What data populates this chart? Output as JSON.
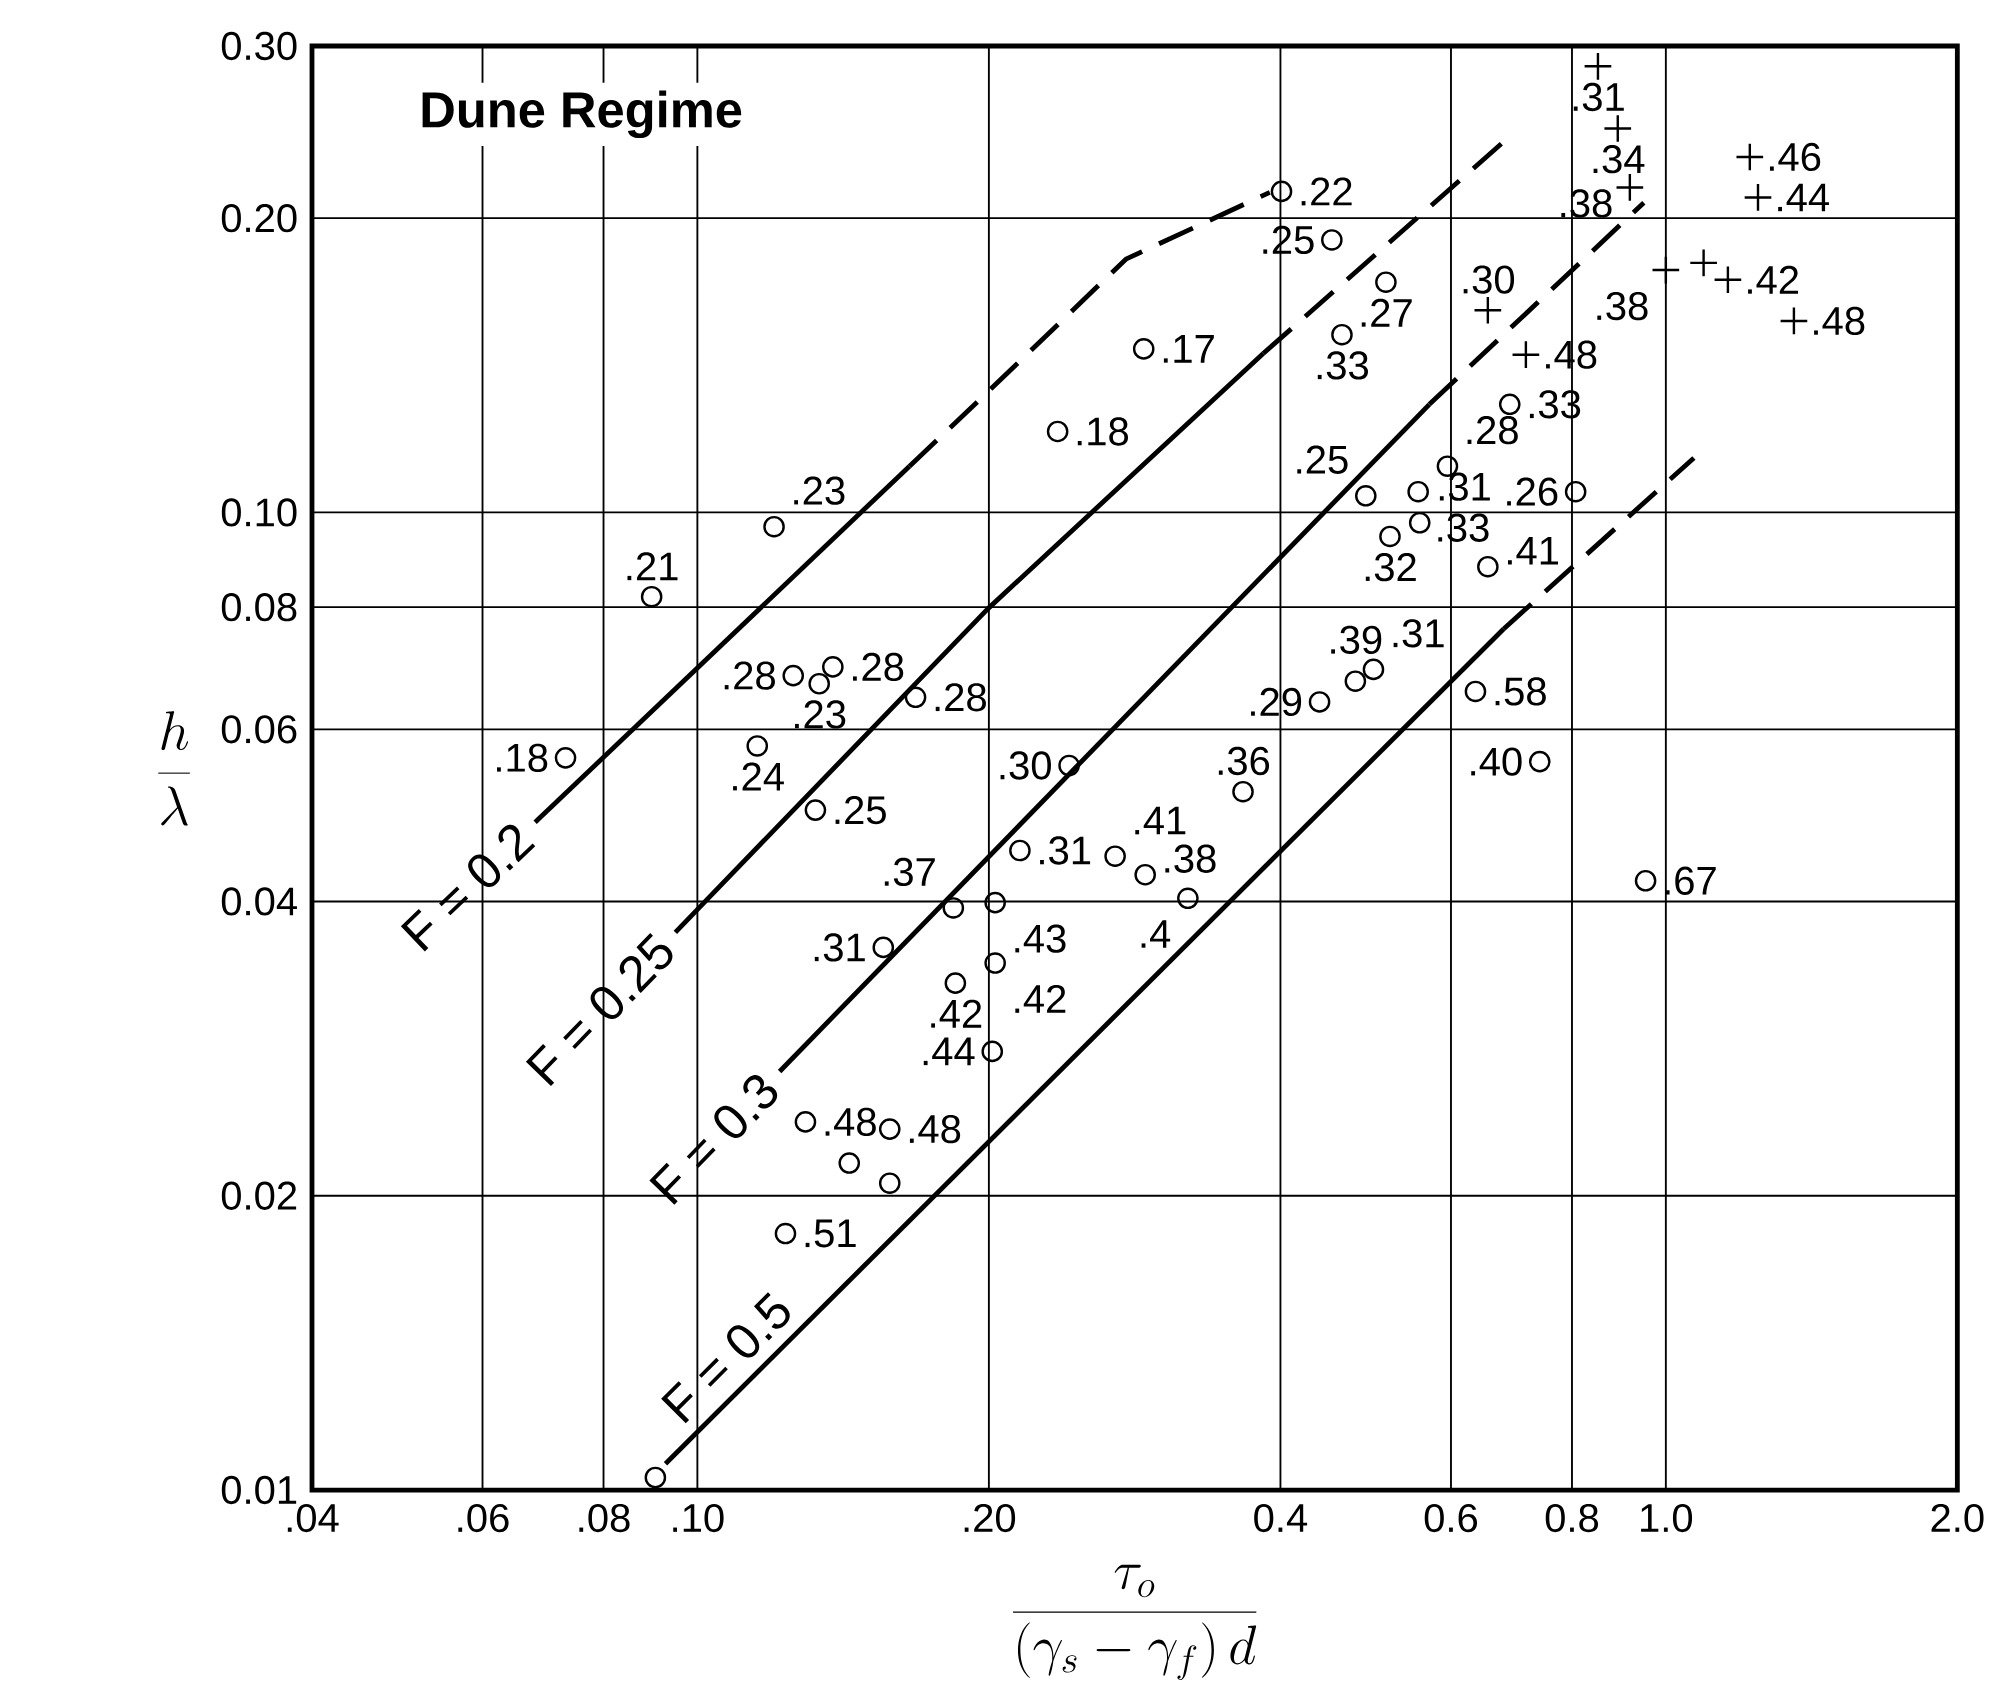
{
  "chart_data": {
    "type": "scatter",
    "title": "Dune Regime",
    "xlabel": "\\frac{\\tau_o}{(\\gamma_s-\\gamma_f)\\,d}",
    "ylabel": "\\frac{h}{\\lambda}",
    "log": "xy",
    "grid": true,
    "xlim": [
      0.04,
      2.0
    ],
    "ylim": [
      0.01,
      0.3
    ],
    "xticks": [
      {
        "value": 0.04,
        "label": ".04"
      },
      {
        "value": 0.06,
        "label": ".06"
      },
      {
        "value": 0.08,
        "label": ".08"
      },
      {
        "value": 0.1,
        "label": ".10"
      },
      {
        "value": 0.2,
        "label": ".20"
      },
      0.4,
      0.6,
      0.8,
      {
        "value": 1.0,
        "label": "1.0"
      },
      {
        "value": 2.0,
        "label": "2.0"
      }
    ],
    "yticks": [
      0.01,
      0.02,
      0.04,
      0.06,
      0.08,
      {
        "value": 0.1,
        "label": "0.10"
      },
      {
        "value": 0.2,
        "label": "0.20"
      },
      {
        "value": 0.3,
        "label": "0.30"
      }
    ],
    "series": [
      {
        "marker": "circle",
        "color": "#000000",
        "x": [
          0.12,
          0.0897,
          0.1256,
          0.1336,
          0.138,
          0.1153,
          0.0731,
          0.168,
          0.401,
          0.452,
          0.514,
          0.463,
          0.289,
          0.2355,
          0.49,
          0.555,
          0.519,
          0.557,
          0.595,
          0.439,
          0.478,
          0.499,
          0.242,
          0.655,
          0.69,
          0.807,
          0.636,
          0.741,
          0.953,
          0.1324,
          0.1556,
          0.0905,
          0.2153,
          0.1838
        ],
        "values": [
          0.0967,
          0.082,
          0.0681,
          0.0668,
          0.0695,
          0.0577,
          0.0561,
          0.0647,
          0.213,
          0.19,
          0.172,
          0.152,
          0.147,
          0.121,
          0.104,
          0.105,
          0.0945,
          0.0976,
          0.1115,
          0.064,
          0.0672,
          0.0691,
          0.0551,
          0.088,
          0.129,
          0.105,
          0.0656,
          0.0556,
          0.042,
          0.0496,
          0.0359,
          0.0103,
          0.0451,
          0.0394
        ]
      },
      {
        "marker": "circle",
        "color": "#000000",
        "x": [
          0.203,
          0.27,
          0.29,
          0.321,
          0.366,
          0.203,
          0.1847,
          0.2016,
          0.1293,
          0.158,
          0.1435,
          0.158,
          0.1233
        ],
        "values": [
          0.0399,
          0.0445,
          0.0426,
          0.0403,
          0.0518,
          0.0346,
          0.033,
          0.0281,
          0.0238,
          0.0234,
          0.0216,
          0.0206,
          0.0183
        ]
      },
      {
        "marker": "cross",
        "color": "#000000",
        "x": [
          0.851,
          0.892,
          0.918,
          1.221,
          1.245,
          1.0,
          1.094,
          1.159,
          1.356,
          0.655,
          0.717
        ],
        "values": [
          0.286,
          0.247,
          0.215,
          0.231,
          0.21,
          0.177,
          0.18,
          0.173,
          0.157,
          0.161,
          0.145
        ]
      },
      {
        "type": "line",
        "name": "F = 0.2",
        "line_style": "solid",
        "color": "#000000",
        "x": [
          0.068,
          0.1656
        ],
        "values": [
          0.0482,
          0.1115
        ]
      },
      {
        "type": "line",
        "line_style": "dashed",
        "color": "#000000",
        "x": [
          0.1656,
          0.1955,
          0.277,
          0.39
        ],
        "values": [
          0.1115,
          0.1303,
          0.1816,
          0.2125
        ]
      },
      {
        "type": "line",
        "name": "F = 0.25",
        "line_style": "solid",
        "color": "#000000",
        "x": [
          0.0949,
          0.1995,
          0.384
        ],
        "values": [
          0.0372,
          0.0797,
          0.1454
        ]
      },
      {
        "type": "line",
        "line_style": "dashed",
        "color": "#000000",
        "x": [
          0.384,
          0.69
        ],
        "values": [
          0.1454,
          0.2425
        ]
      },
      {
        "type": "line",
        "name": "F = 0.3",
        "line_style": "solid",
        "color": "#000000",
        "x": [
          0.1216,
          0.57
        ],
        "values": [
          0.0268,
          0.129
        ]
      },
      {
        "type": "line",
        "line_style": "dashed",
        "color": "#000000",
        "x": [
          0.57,
          0.949
        ],
        "values": [
          0.129,
          0.2074
        ]
      },
      {
        "type": "line",
        "name": "F = 0.5",
        "line_style": "solid",
        "color": "#000000",
        "x": [
          0.0927,
          0.68
        ],
        "values": [
          0.01064,
          0.076
        ]
      },
      {
        "type": "line",
        "line_style": "dashed",
        "color": "#000000",
        "x": [
          0.68,
          1.069
        ],
        "values": [
          0.076,
          0.1137
        ]
      }
    ],
    "annotations": [
      {
        "text": ".23",
        "x": 0.12,
        "y": 0.0967
      },
      {
        "text": ".21",
        "x": 0.0897,
        "y": 0.082
      },
      {
        "text": ".28",
        "x": 0.1256,
        "y": 0.0681
      },
      {
        "text": ".23",
        "x": 0.1336,
        "y": 0.0668
      },
      {
        "text": ".28",
        "x": 0.138,
        "y": 0.0695
      },
      {
        "text": ".24",
        "x": 0.1153,
        "y": 0.0577
      },
      {
        "text": ".18",
        "x": 0.0731,
        "y": 0.0561
      },
      {
        "text": ".28",
        "x": 0.168,
        "y": 0.0647
      },
      {
        "text": ".22",
        "x": 0.401,
        "y": 0.213
      },
      {
        "text": ".25",
        "x": 0.452,
        "y": 0.19
      },
      {
        "text": ".27",
        "x": 0.514,
        "y": 0.172
      },
      {
        "text": ".33",
        "x": 0.463,
        "y": 0.152
      },
      {
        "text": ".17",
        "x": 0.289,
        "y": 0.147
      },
      {
        "text": ".18",
        "x": 0.2355,
        "y": 0.121
      },
      {
        "text": ".25",
        "x": 0.49,
        "y": 0.104
      },
      {
        "text": ".33",
        "x": 0.555,
        "y": 0.105
      },
      {
        "text": ".32",
        "x": 0.519,
        "y": 0.0945
      },
      {
        "text": ".31",
        "x": 0.557,
        "y": 0.0976
      },
      {
        "text": ".28",
        "x": 0.595,
        "y": 0.1115
      },
      {
        "text": ".29",
        "x": 0.439,
        "y": 0.064
      },
      {
        "text": ".39",
        "x": 0.478,
        "y": 0.0672
      },
      {
        "text": ".31",
        "x": 0.499,
        "y": 0.0691
      },
      {
        "text": ".30",
        "x": 0.242,
        "y": 0.0551
      },
      {
        "text": ".41",
        "x": 0.655,
        "y": 0.088
      },
      {
        "text": ".33",
        "x": 0.69,
        "y": 0.129
      },
      {
        "text": ".26",
        "x": 0.807,
        "y": 0.105
      },
      {
        "text": ".58",
        "x": 0.636,
        "y": 0.0656
      },
      {
        "text": ".40",
        "x": 0.741,
        "y": 0.0556
      },
      {
        "text": ".67",
        "x": 0.953,
        "y": 0.042
      },
      {
        "text": ".25",
        "x": 0.1324,
        "y": 0.0496
      },
      {
        "text": ".31",
        "x": 0.1556,
        "y": 0.0359
      },
      {
        "text": ".31",
        "x": 0.2153,
        "y": 0.0451
      },
      {
        "text": ".37",
        "x": 0.1838,
        "y": 0.0394
      },
      {
        "text": ".43",
        "x": 0.203,
        "y": 0.0399
      },
      {
        "text": ".41",
        "x": 0.27,
        "y": 0.0445
      },
      {
        "text": ".38",
        "x": 0.29,
        "y": 0.0426
      },
      {
        "text": ".4",
        "x": 0.321,
        "y": 0.0403
      },
      {
        "text": ".36",
        "x": 0.366,
        "y": 0.0518
      },
      {
        "text": ".42",
        "x": 0.203,
        "y": 0.0346
      },
      {
        "text": ".42",
        "x": 0.1847,
        "y": 0.033
      },
      {
        "text": ".44",
        "x": 0.2016,
        "y": 0.0281
      },
      {
        "text": ".48",
        "x": 0.1293,
        "y": 0.0238
      },
      {
        "text": ".48",
        "x": 0.158,
        "y": 0.0234
      },
      {
        "text": ".51",
        "x": 0.1233,
        "y": 0.0183
      },
      {
        "text": ".31",
        "x": 0.851,
        "y": 0.286
      },
      {
        "text": ".34",
        "x": 0.892,
        "y": 0.247
      },
      {
        "text": ".38",
        "x": 0.918,
        "y": 0.215
      },
      {
        "text": ".46",
        "x": 1.221,
        "y": 0.231
      },
      {
        "text": ".44",
        "x": 1.245,
        "y": 0.21
      },
      {
        "text": ".38",
        "x": 1.0,
        "y": 0.177
      },
      {
        "text": ".42",
        "x": 1.159,
        "y": 0.173
      },
      {
        "text": ".48",
        "x": 1.356,
        "y": 0.157
      },
      {
        "text": ".30",
        "x": 0.655,
        "y": 0.161
      },
      {
        "text": ".48",
        "x": 0.717,
        "y": 0.145
      }
    ]
  }
}
